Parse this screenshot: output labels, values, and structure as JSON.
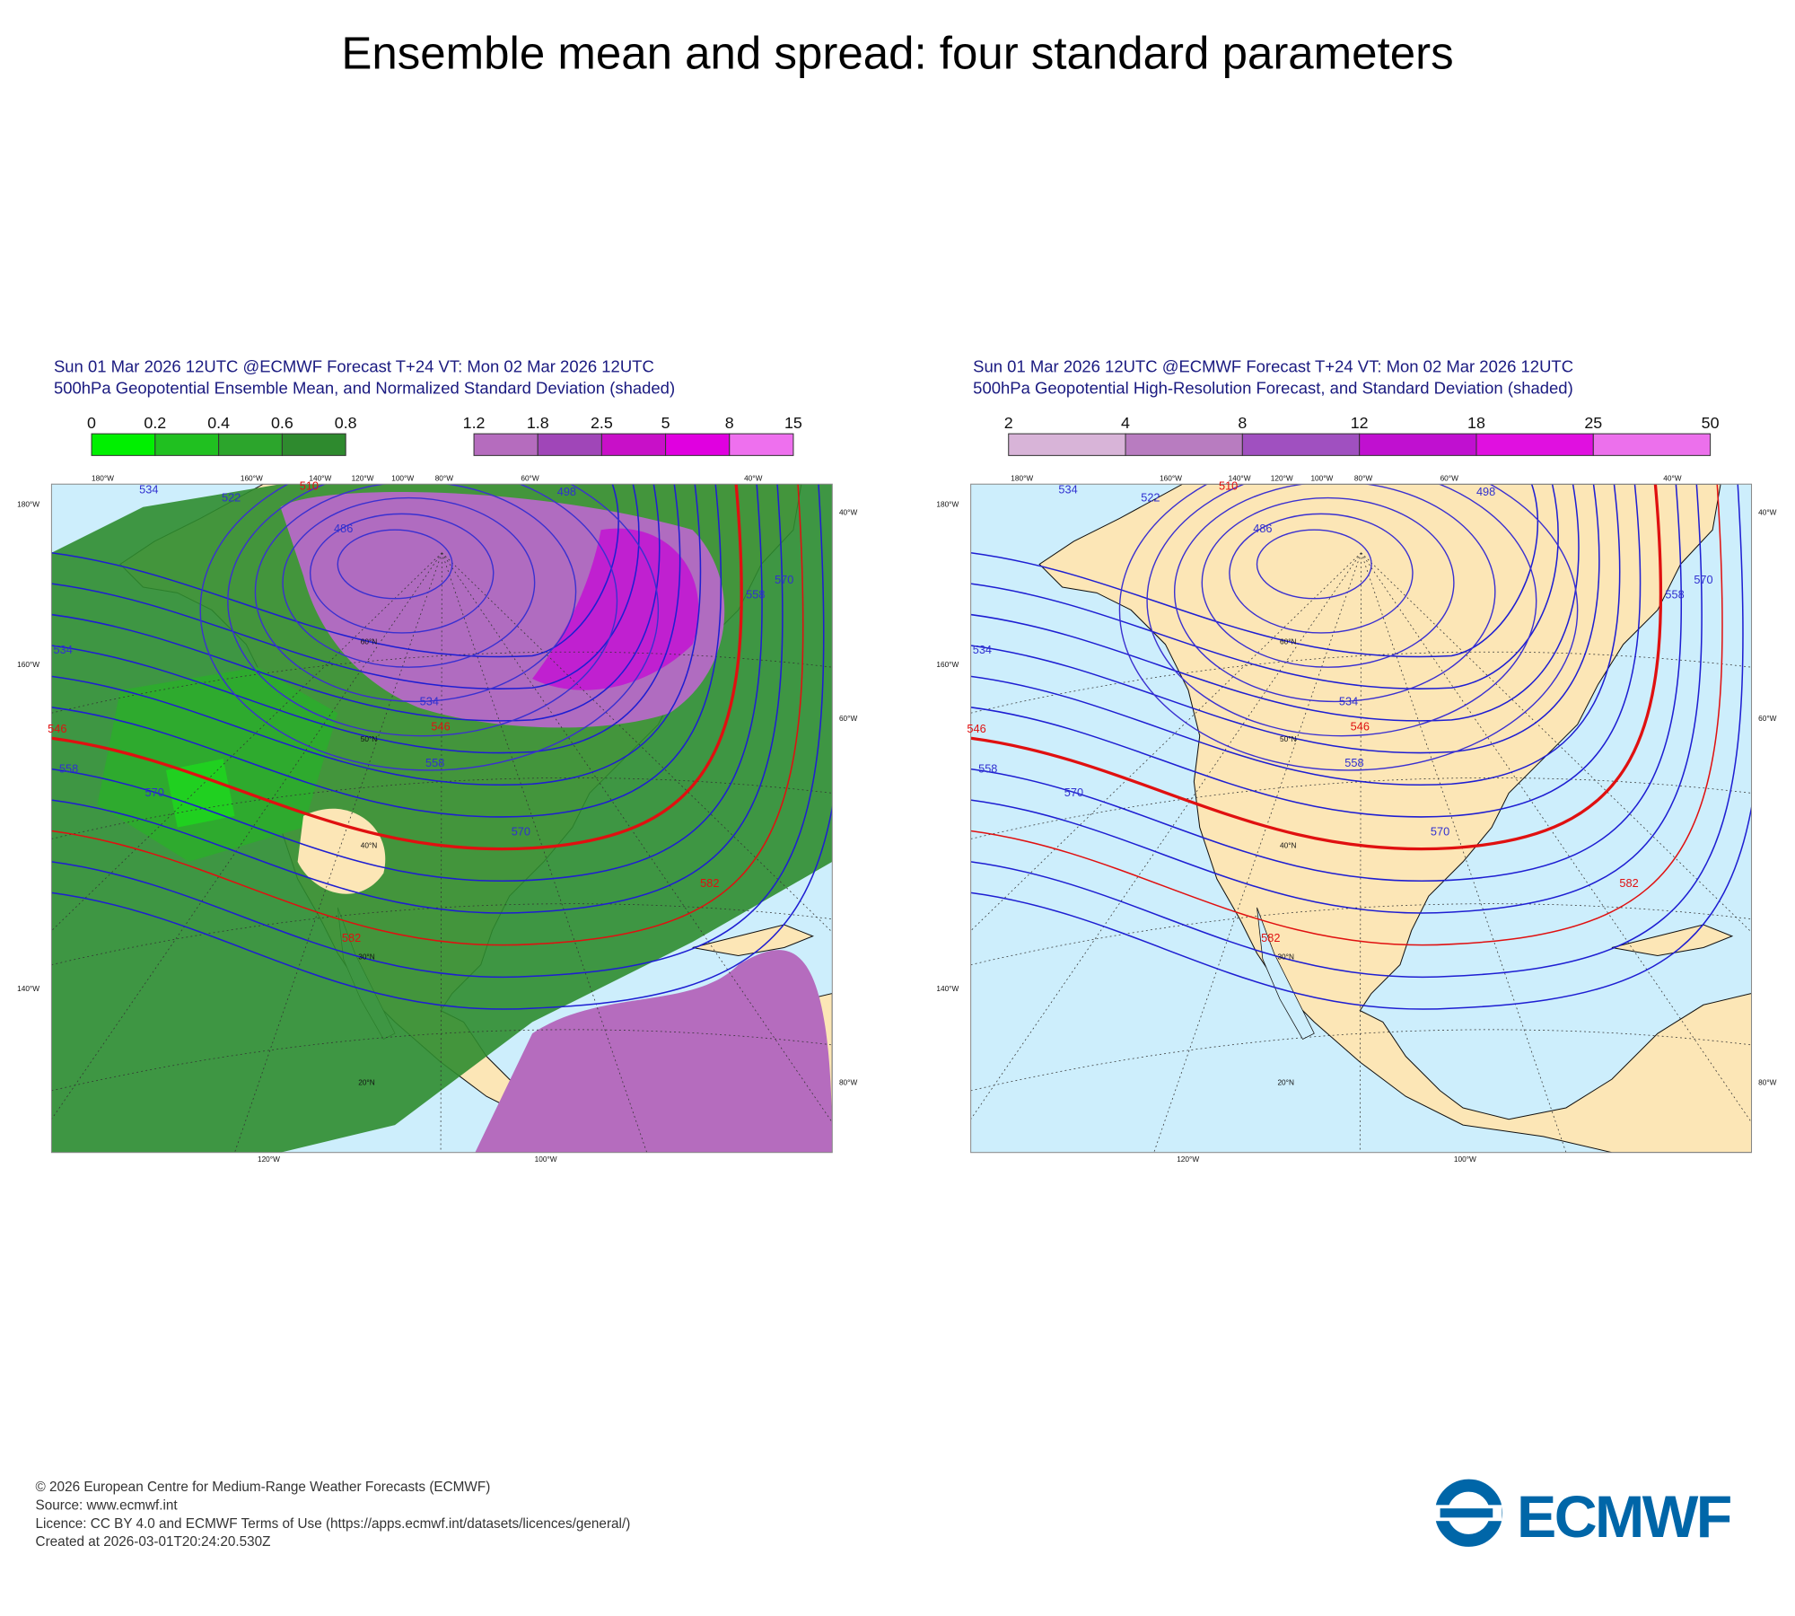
{
  "title": "Ensemble mean and spread: four standard parameters",
  "panels": [
    {
      "header": [
        "Sun 01 Mar 2026 12UTC @ECMWF Forecast T+24 VT: Mon 02 Mar 2026 12UTC",
        "500hPa Geopotential Ensemble Mean, and Normalized Standard Deviation (shaded)"
      ],
      "colorbars": [
        {
          "ticks": [
            0,
            0.2,
            0.4,
            0.6,
            0.8
          ],
          "colors": [
            "#00f000",
            "#20c020",
            "#2ca52c",
            "#2e8a2e"
          ]
        },
        {
          "ticks": [
            1.2,
            1.8,
            2.5,
            5,
            8,
            15
          ],
          "colors": [
            "#b56cbe",
            "#a046b8",
            "#c810c8",
            "#e000e0",
            "#ee70ee"
          ]
        }
      ],
      "contour_labels": [
        534,
        522,
        486,
        498,
        510,
        534,
        546,
        558,
        570,
        582,
        546,
        558,
        570,
        582,
        534,
        558,
        570
      ]
    },
    {
      "header": [
        "Sun 01 Mar 2026 12UTC @ECMWF Forecast T+24 VT: Mon 02 Mar 2026 12UTC",
        "500hPa Geopotential High-Resolution Forecast, and Standard Deviation (shaded)"
      ],
      "colorbars": [
        {
          "ticks": [
            2,
            4,
            8,
            12,
            18,
            25,
            50
          ],
          "colors": [
            "#d8b4d8",
            "#b87cc0",
            "#a050c0",
            "#c010d0",
            "#e010e0",
            "#ec70ec"
          ]
        }
      ],
      "contour_labels": [
        534,
        522,
        486,
        498,
        510,
        534,
        546,
        558,
        570,
        582,
        546,
        558,
        570,
        582,
        534,
        558,
        570
      ]
    }
  ],
  "lon_labels": [
    "180°W",
    "160°W",
    "140°W",
    "120°W",
    "100°W",
    "80°W",
    "60°W",
    "40°W"
  ],
  "lat_labels": [
    "60°N",
    "50°N",
    "40°N",
    "30°N",
    "20°N"
  ],
  "side_labels": [
    "180°W",
    "160°W",
    "140°W",
    "40°W",
    "60°W",
    "80°W"
  ],
  "bottom_labels": [
    "120°W",
    "100°W"
  ],
  "footer": [
    "© 2026 European Centre for Medium-Range Weather Forecasts (ECMWF)",
    "Source: www.ecmwf.int",
    "Licence: CC BY 4.0 and ECMWF Terms of Use (https://apps.ecmwf.int/datasets/licences/general/)",
    "Created at 2026-03-01T20:24:20.530Z"
  ],
  "logo": "ECMWF"
}
